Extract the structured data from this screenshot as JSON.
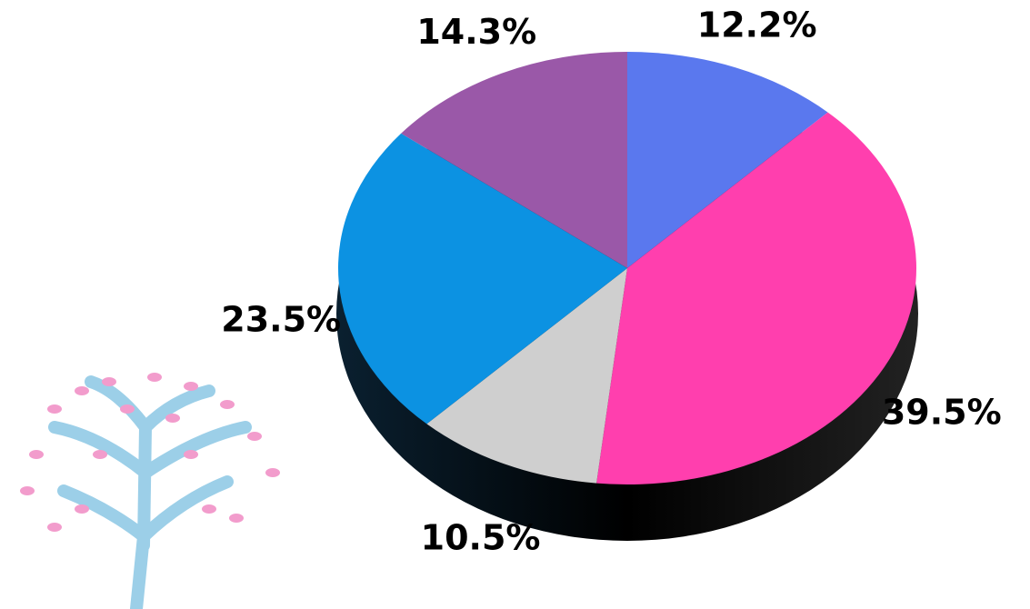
{
  "chart_data": {
    "type": "pie",
    "values": [
      12.2,
      39.5,
      10.5,
      23.5,
      14.3
    ],
    "value_labels": [
      "12.2%",
      "39.5%",
      "10.5%",
      "23.5%",
      "14.3%"
    ],
    "colors": [
      "#5a78ee",
      "#ff3fae",
      "#cfcfcf",
      "#0c92e2",
      "#9a58a8"
    ]
  }
}
